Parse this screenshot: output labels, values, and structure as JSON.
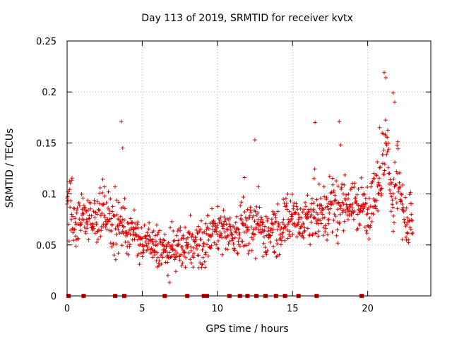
{
  "chart_data": {
    "type": "scatter",
    "title": "Day 113 of 2019, SRMTID for receiver kvtx",
    "xlabel": "GPS time / hours",
    "ylabel": "SRMTID / TECUs",
    "xlim": [
      0,
      24.2
    ],
    "ylim": [
      0,
      0.25
    ],
    "xticks": [
      0,
      5,
      10,
      15,
      20
    ],
    "xtick_labels": [
      "0",
      "5",
      "10",
      "15",
      "20"
    ],
    "yticks": [
      0,
      0.05,
      0.1,
      0.15,
      0.2,
      0.25
    ],
    "ytick_labels": [
      "0",
      "0.05",
      "0.1",
      "0.15",
      "0.2",
      "0.25"
    ],
    "grid": true,
    "marker": "+",
    "series": [
      {
        "name": "SRMTID",
        "color": "#e00000",
        "x": [
          0.0,
          0.3,
          0.6,
          1.0,
          1.3,
          1.7,
          2.0,
          2.4,
          2.7,
          3.0,
          3.4,
          3.7,
          4.0,
          4.4,
          4.7,
          5.0,
          5.4,
          5.7,
          6.0,
          6.4,
          6.7,
          7.0,
          7.4,
          7.7,
          8.0,
          8.4,
          8.7,
          9.0,
          9.4,
          9.7,
          10.0,
          10.4,
          10.7,
          11.0,
          11.4,
          11.7,
          12.0,
          12.4,
          12.7,
          13.0,
          13.4,
          13.7,
          14.0,
          14.4,
          14.7,
          15.0,
          15.4,
          15.7,
          16.0,
          16.4,
          16.7,
          17.0,
          17.4,
          17.7,
          18.0,
          18.4,
          18.7,
          19.0,
          19.4,
          19.7,
          20.0,
          20.4,
          20.7,
          21.0,
          21.2,
          21.4,
          21.7,
          22.0,
          22.3,
          22.6,
          22.9
        ],
        "y": [
          0.09,
          0.08,
          0.07,
          0.085,
          0.075,
          0.07,
          0.08,
          0.09,
          0.075,
          0.07,
          0.065,
          0.075,
          0.06,
          0.065,
          0.055,
          0.05,
          0.055,
          0.045,
          0.05,
          0.045,
          0.04,
          0.045,
          0.05,
          0.045,
          0.05,
          0.055,
          0.05,
          0.045,
          0.06,
          0.065,
          0.06,
          0.07,
          0.065,
          0.06,
          0.065,
          0.07,
          0.065,
          0.06,
          0.075,
          0.065,
          0.06,
          0.07,
          0.065,
          0.075,
          0.07,
          0.08,
          0.075,
          0.07,
          0.08,
          0.085,
          0.075,
          0.08,
          0.085,
          0.09,
          0.085,
          0.09,
          0.095,
          0.09,
          0.085,
          0.09,
          0.085,
          0.095,
          0.1,
          0.13,
          0.15,
          0.12,
          0.1,
          0.12,
          0.09,
          0.07,
          0.08
        ],
        "spread": [
          0.025,
          0.03,
          0.025,
          0.025,
          0.025,
          0.025,
          0.03,
          0.03,
          0.025,
          0.025,
          0.03,
          0.03,
          0.02,
          0.02,
          0.02,
          0.02,
          0.02,
          0.02,
          0.02,
          0.02,
          0.02,
          0.02,
          0.02,
          0.02,
          0.025,
          0.02,
          0.02,
          0.025,
          0.025,
          0.02,
          0.02,
          0.025,
          0.02,
          0.02,
          0.025,
          0.025,
          0.02,
          0.025,
          0.03,
          0.025,
          0.02,
          0.025,
          0.025,
          0.025,
          0.025,
          0.025,
          0.025,
          0.025,
          0.03,
          0.03,
          0.03,
          0.03,
          0.03,
          0.03,
          0.03,
          0.025,
          0.025,
          0.025,
          0.025,
          0.025,
          0.03,
          0.03,
          0.03,
          0.035,
          0.04,
          0.03,
          0.03,
          0.035,
          0.03,
          0.025,
          0.025
        ]
      }
    ],
    "outliers": {
      "x": [
        3.6,
        3.7,
        11.8,
        12.5,
        16.5,
        18.1,
        18.2,
        20.8,
        21.1,
        21.2,
        21.7,
        21.8
      ],
      "y": [
        0.171,
        0.145,
        0.116,
        0.153,
        0.17,
        0.171,
        0.148,
        0.165,
        0.219,
        0.214,
        0.199,
        0.19
      ]
    },
    "zero_markers_x": [
      0.1,
      1.1,
      3.2,
      3.8,
      6.5,
      8.0,
      9.1,
      9.3,
      10.8,
      11.5,
      12.0,
      12.6,
      13.2,
      13.9,
      14.5,
      15.4,
      16.6,
      19.6
    ]
  }
}
